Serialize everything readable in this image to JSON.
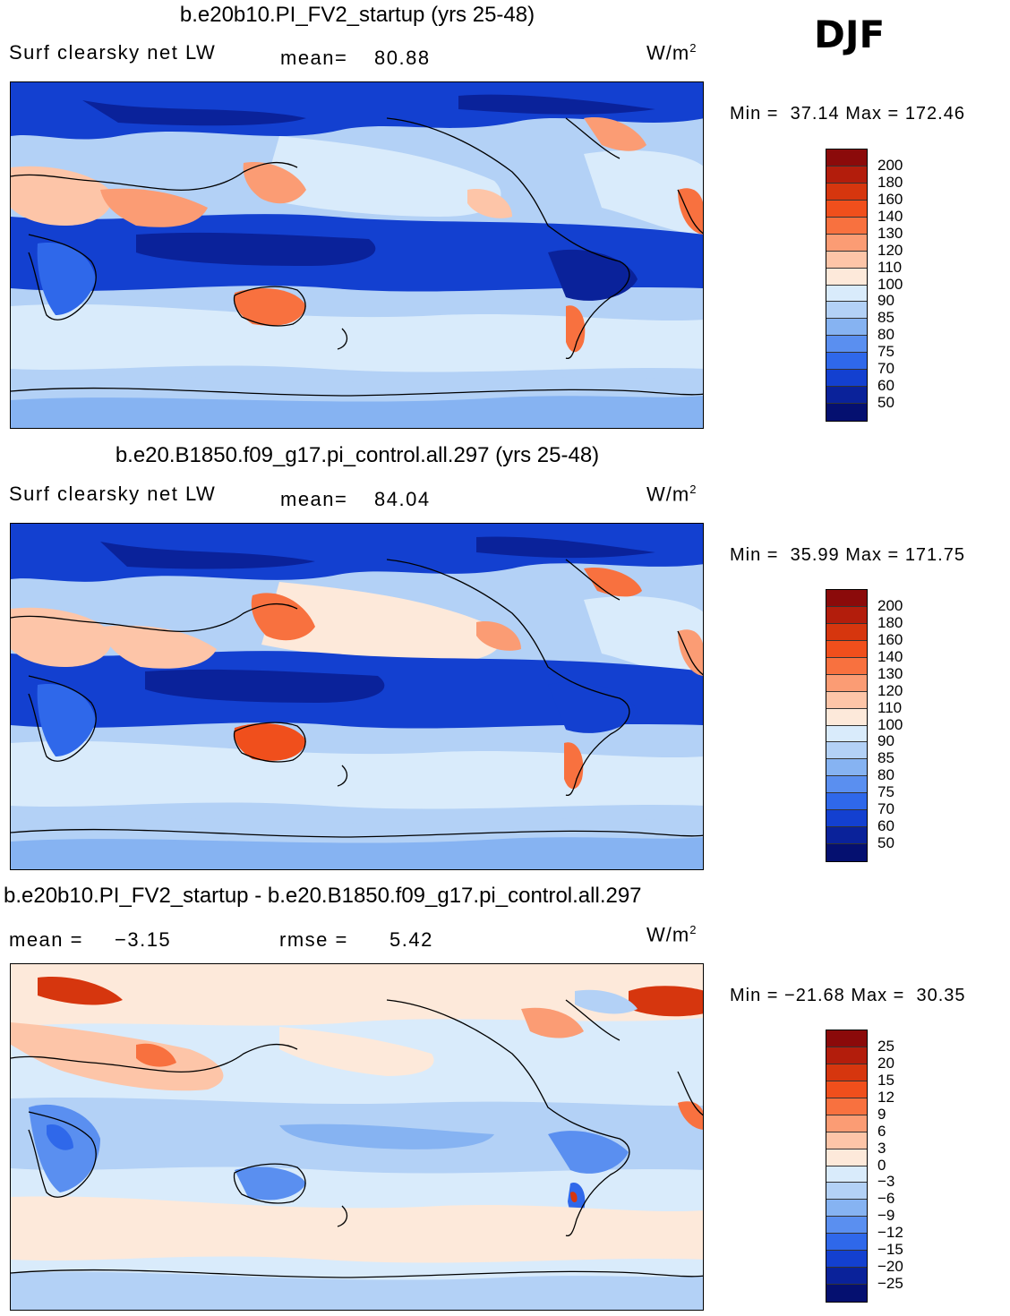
{
  "season": "DJF",
  "panels": [
    {
      "title": "b.e20b10.PI_FV2_startup (yrs 25-48)",
      "left_label": "Surf clearsky net LW",
      "stat_label": "mean=",
      "stat_value": "80.88",
      "units": "W/m",
      "units_sup": "2",
      "min_label": "Min =",
      "min_value": "37.14",
      "max_label": "Max =",
      "max_value": "172.46",
      "colorbar_ticks": [
        "200",
        "180",
        "160",
        "140",
        "130",
        "120",
        "110",
        "100",
        "90",
        "85",
        "80",
        "75",
        "70",
        "60",
        "50"
      ],
      "colorbar_colors": [
        "#8b0a0a",
        "#b31d0c",
        "#d6360e",
        "#f04f1c",
        "#f8713f",
        "#fb9c74",
        "#fdc5a8",
        "#fde9da",
        "#d9ebfb",
        "#b3d1f6",
        "#86b3f2",
        "#5a8ff0",
        "#2f68ea",
        "#1340d0",
        "#0a229a",
        "#051070"
      ]
    },
    {
      "title": "b.e20.B1850.f09_g17.pi_control.all.297 (yrs 25-48)",
      "left_label": "Surf clearsky net LW",
      "stat_label": "mean=",
      "stat_value": "84.04",
      "units": "W/m",
      "units_sup": "2",
      "min_label": "Min =",
      "min_value": "35.99",
      "max_label": "Max =",
      "max_value": "171.75",
      "colorbar_ticks": [
        "200",
        "180",
        "160",
        "140",
        "130",
        "120",
        "110",
        "100",
        "90",
        "85",
        "80",
        "75",
        "70",
        "60",
        "50"
      ],
      "colorbar_colors": [
        "#8b0a0a",
        "#b31d0c",
        "#d6360e",
        "#f04f1c",
        "#f8713f",
        "#fb9c74",
        "#fdc5a8",
        "#fde9da",
        "#d9ebfb",
        "#b3d1f6",
        "#86b3f2",
        "#5a8ff0",
        "#2f68ea",
        "#1340d0",
        "#0a229a",
        "#051070"
      ]
    },
    {
      "title": "b.e20b10.PI_FV2_startup - b.e20.B1850.f09_g17.pi_control.all.297",
      "mean_label": "mean =",
      "mean_value": "−3.15",
      "rmse_label": "rmse =",
      "rmse_value": "5.42",
      "units": "W/m",
      "units_sup": "2",
      "min_label": "Min =",
      "min_value": "−21.68",
      "max_label": "Max =",
      "max_value": "30.35",
      "colorbar_ticks": [
        "25",
        "20",
        "15",
        "12",
        "9",
        "6",
        "3",
        "0",
        "−3",
        "−6",
        "−9",
        "−12",
        "−15",
        "−20",
        "−25"
      ],
      "colorbar_colors": [
        "#8b0a0a",
        "#b31d0c",
        "#d6360e",
        "#f04f1c",
        "#f8713f",
        "#fb9c74",
        "#fdc5a8",
        "#fde9da",
        "#d9ebfb",
        "#b3d1f6",
        "#86b3f2",
        "#5a8ff0",
        "#2f68ea",
        "#1340d0",
        "#0a229a",
        "#051070"
      ]
    }
  ]
}
